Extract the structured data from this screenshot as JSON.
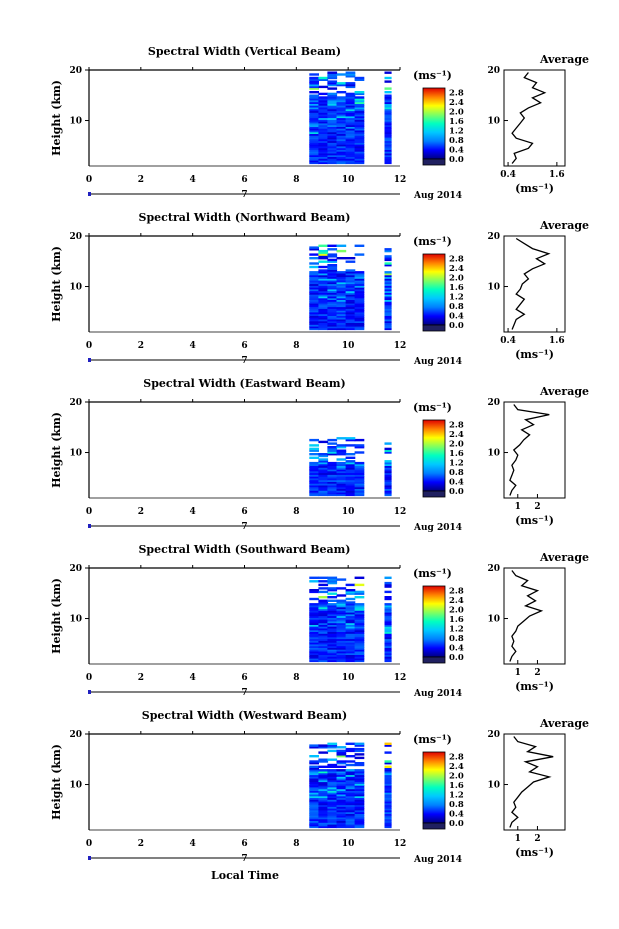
{
  "figure": {
    "xlabel": "Local Time",
    "date_label": "Aug 2014",
    "date_tick": "7",
    "colorbar_unit": "(ms⁻¹)",
    "avg_title": "Average",
    "avg_xlabel": "(ms⁻¹)"
  },
  "colors": {
    "stops": [
      "#000080",
      "#0000ff",
      "#0080ff",
      "#00c8ff",
      "#00ffc0",
      "#80ff60",
      "#ffff00",
      "#ff8000",
      "#e00000"
    ],
    "underflow": "#202060",
    "line": "#000000"
  },
  "chart_data": [
    {
      "type": "heatmap",
      "title": "Spectral Width (Vertical Beam)",
      "ylabel": "Height (km)",
      "xlim": [
        0,
        12
      ],
      "ylim": [
        1,
        20
      ],
      "xticks": [
        "0",
        "2",
        "4",
        "6",
        "8",
        "10",
        "12"
      ],
      "yticks": [
        "10",
        "20"
      ],
      "colorbar": {
        "range": [
          0,
          3
        ],
        "ticks": [
          "0.0",
          "0.4",
          "0.8",
          "1.2",
          "1.6",
          "2.0",
          "2.4",
          "2.8"
        ]
      },
      "data_blocks": [
        {
          "t_start": 8.5,
          "t_end": 10.6
        },
        {
          "t_start": 11.4,
          "t_end": 11.65
        }
      ],
      "height_range": [
        1.5,
        19.5
      ],
      "average": {
        "title": "Average",
        "xticks": [
          "0.4",
          "1.6"
        ],
        "xlim": [
          0.3,
          1.8
        ],
        "heights": [
          1.5,
          2.5,
          3.5,
          4.5,
          5.5,
          6.5,
          7.5,
          8.5,
          9.5,
          10.5,
          11.5,
          12.5,
          13.5,
          14.5,
          15.5,
          16.5,
          17.5,
          18.5,
          19.5
        ],
        "values": [
          0.5,
          0.6,
          0.55,
          0.9,
          1.0,
          0.6,
          0.5,
          0.6,
          0.7,
          0.8,
          0.7,
          0.9,
          1.2,
          1.0,
          1.3,
          1.0,
          1.1,
          0.8,
          0.9
        ]
      }
    },
    {
      "type": "heatmap",
      "title": "Spectral Width (Northward Beam)",
      "ylabel": "Height (km)",
      "xlim": [
        0,
        12
      ],
      "ylim": [
        1,
        20
      ],
      "xticks": [
        "0",
        "2",
        "4",
        "6",
        "8",
        "10",
        "12"
      ],
      "yticks": [
        "10",
        "20"
      ],
      "colorbar": {
        "range": [
          0,
          3
        ],
        "ticks": [
          "0.0",
          "0.4",
          "0.8",
          "1.2",
          "1.6",
          "2.0",
          "2.4",
          "2.8"
        ]
      },
      "data_blocks": [
        {
          "t_start": 8.5,
          "t_end": 10.6
        },
        {
          "t_start": 11.4,
          "t_end": 11.65
        }
      ],
      "height_range": [
        1.5,
        18.0
      ],
      "average": {
        "title": "Average",
        "xticks": [
          "0.4",
          "1.6"
        ],
        "xlim": [
          0.3,
          1.8
        ],
        "heights": [
          1.5,
          2.5,
          3.5,
          4.5,
          5.5,
          6.5,
          7.5,
          8.5,
          9.5,
          10.5,
          11.5,
          12.5,
          13.5,
          14.5,
          15.5,
          16.5,
          17.5,
          18.5,
          19.5
        ],
        "values": [
          0.5,
          0.55,
          0.6,
          0.8,
          0.6,
          0.7,
          0.8,
          0.6,
          0.7,
          0.75,
          0.9,
          0.8,
          1.0,
          1.3,
          1.1,
          1.4,
          1.0,
          0.8,
          0.6
        ]
      }
    },
    {
      "type": "heatmap",
      "title": "Spectral Width (Eastward Beam)",
      "ylabel": "Height (km)",
      "xlim": [
        0,
        12
      ],
      "ylim": [
        1,
        20
      ],
      "xticks": [
        "0",
        "2",
        "4",
        "6",
        "8",
        "10",
        "12"
      ],
      "yticks": [
        "10",
        "20"
      ],
      "colorbar": {
        "range": [
          0,
          3
        ],
        "ticks": [
          "0.0",
          "0.4",
          "0.8",
          "1.2",
          "1.6",
          "2.0",
          "2.4",
          "2.8"
        ]
      },
      "data_blocks": [
        {
          "t_start": 8.5,
          "t_end": 10.6
        },
        {
          "t_start": 11.4,
          "t_end": 11.65
        }
      ],
      "height_range": [
        1.5,
        13.0
      ],
      "average": {
        "title": "Average",
        "xticks": [
          "1",
          "2"
        ],
        "xlim": [
          0.3,
          3.4
        ],
        "heights": [
          1.5,
          2.5,
          3.5,
          4.5,
          5.5,
          6.5,
          7.5,
          8.5,
          9.5,
          10.5,
          11.5,
          12.5,
          13.5,
          14.5,
          15.5,
          16.5,
          17.5,
          18.5,
          19.5
        ],
        "values": [
          0.6,
          0.7,
          0.9,
          0.6,
          0.7,
          0.8,
          0.7,
          0.9,
          1.0,
          0.8,
          1.1,
          1.3,
          1.6,
          1.2,
          1.8,
          1.4,
          2.6,
          1.0,
          0.8
        ]
      }
    },
    {
      "type": "heatmap",
      "title": "Spectral Width (Southward Beam)",
      "ylabel": "Height (km)",
      "xlim": [
        0,
        12
      ],
      "ylim": [
        1,
        20
      ],
      "xticks": [
        "0",
        "2",
        "4",
        "6",
        "8",
        "10",
        "12"
      ],
      "yticks": [
        "10",
        "20"
      ],
      "colorbar": {
        "range": [
          0,
          3
        ],
        "ticks": [
          "0.0",
          "0.4",
          "0.8",
          "1.2",
          "1.6",
          "2.0",
          "2.4",
          "2.8"
        ]
      },
      "data_blocks": [
        {
          "t_start": 8.5,
          "t_end": 10.6
        },
        {
          "t_start": 11.4,
          "t_end": 11.65
        }
      ],
      "height_range": [
        1.5,
        18.0
      ],
      "average": {
        "title": "Average",
        "xticks": [
          "1",
          "2"
        ],
        "xlim": [
          0.3,
          3.4
        ],
        "heights": [
          1.5,
          2.5,
          3.5,
          4.5,
          5.5,
          6.5,
          7.5,
          8.5,
          9.5,
          10.5,
          11.5,
          12.5,
          13.5,
          14.5,
          15.5,
          16.5,
          17.5,
          18.5,
          19.5
        ],
        "values": [
          0.6,
          0.7,
          0.9,
          0.7,
          0.8,
          0.7,
          0.9,
          1.0,
          1.3,
          1.6,
          2.2,
          1.4,
          1.9,
          1.5,
          2.0,
          1.2,
          1.5,
          0.9,
          0.7
        ]
      }
    },
    {
      "type": "heatmap",
      "title": "Spectral Width (Westward Beam)",
      "ylabel": "Height (km)",
      "xlim": [
        0,
        12
      ],
      "ylim": [
        1,
        20
      ],
      "xticks": [
        "0",
        "2",
        "4",
        "6",
        "8",
        "10",
        "12"
      ],
      "yticks": [
        "10",
        "20"
      ],
      "colorbar": {
        "range": [
          0,
          3
        ],
        "ticks": [
          "0.0",
          "0.4",
          "0.8",
          "1.2",
          "1.6",
          "2.0",
          "2.4",
          "2.8"
        ]
      },
      "data_blocks": [
        {
          "t_start": 8.5,
          "t_end": 10.6
        },
        {
          "t_start": 11.4,
          "t_end": 11.65
        }
      ],
      "height_range": [
        1.5,
        18.0
      ],
      "average": {
        "title": "Average",
        "xticks": [
          "1",
          "2"
        ],
        "xlim": [
          0.3,
          3.4
        ],
        "heights": [
          1.5,
          2.5,
          3.5,
          4.5,
          5.5,
          6.5,
          7.5,
          8.5,
          9.5,
          10.5,
          11.5,
          12.5,
          13.5,
          14.5,
          15.5,
          16.5,
          17.5,
          18.5,
          19.5
        ],
        "values": [
          0.6,
          0.7,
          1.0,
          0.7,
          0.9,
          0.8,
          1.0,
          1.2,
          1.5,
          1.8,
          2.6,
          1.6,
          2.0,
          1.4,
          2.8,
          1.5,
          1.9,
          1.0,
          0.8
        ]
      }
    }
  ]
}
